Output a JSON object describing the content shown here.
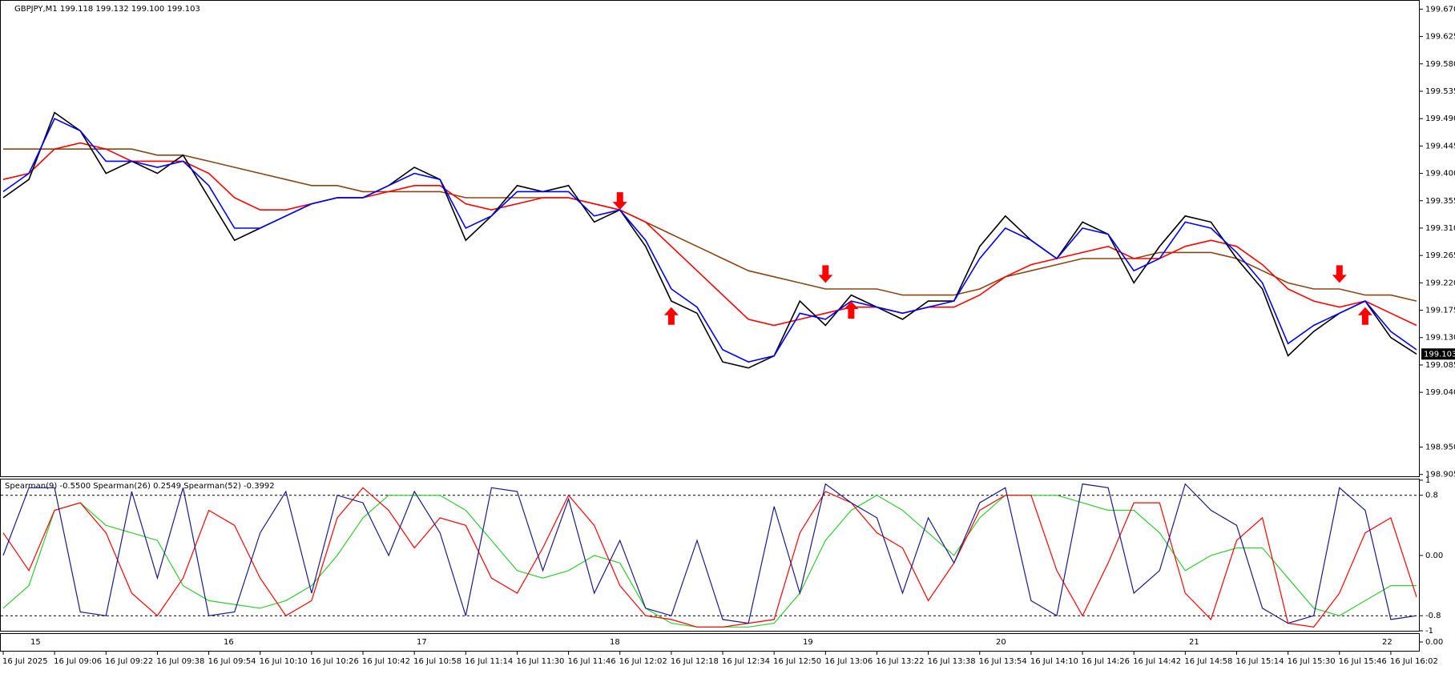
{
  "chart_data": {
    "type": "line",
    "title": "GBPJPY,M1  199.118 199.132 199.100 199.103",
    "categories": [
      "16 Jul 2025",
      null,
      "16 Jul 09:06",
      null,
      "16 Jul 09:22",
      null,
      "16 Jul 09:38",
      null,
      "16 Jul 09:54",
      null,
      "16 Jul 10:10",
      null,
      "16 Jul 10:26",
      null,
      "16 Jul 10:42",
      null,
      "16 Jul 10:58",
      null,
      "16 Jul 11:14",
      null,
      "16 Jul 11:30",
      null,
      "16 Jul 11:46",
      null,
      "16 Jul 12:02",
      null,
      "16 Jul 12:18",
      null,
      "16 Jul 12:34",
      null,
      "16 Jul 12:50",
      null,
      "16 Jul 13:06",
      null,
      "16 Jul 13:22",
      null,
      "16 Jul 13:38",
      null,
      "16 Jul 13:54",
      null,
      "16 Jul 14:10",
      null,
      "16 Jul 14:26",
      null,
      "16 Jul 14:42",
      null,
      "16 Jul 14:58",
      null,
      "16 Jul 15:14",
      null,
      "16 Jul 15:30",
      null,
      "16 Jul 15:46",
      null,
      "16 Jul 16:02",
      null
    ],
    "ylim": [
      198.902,
      199.685
    ],
    "yticks": [
      {
        "value": 199.67,
        "label": "199.670"
      },
      {
        "value": 199.625,
        "label": "199.625"
      },
      {
        "value": 199.58,
        "label": "199.580"
      },
      {
        "value": 199.535,
        "label": "199.535"
      },
      {
        "value": 199.49,
        "label": "199.490"
      },
      {
        "value": 199.445,
        "label": "199.445"
      },
      {
        "value": 199.4,
        "label": "199.400"
      },
      {
        "value": 199.355,
        "label": "199.355"
      },
      {
        "value": 199.31,
        "label": "199.310"
      },
      {
        "value": 199.265,
        "label": "199.265"
      },
      {
        "value": 199.22,
        "label": "199.220"
      },
      {
        "value": 199.175,
        "label": "199.175"
      },
      {
        "value": 199.13,
        "label": "199.130"
      },
      {
        "value": 199.085,
        "label": "199.085"
      },
      {
        "value": 199.04,
        "label": "199.040"
      },
      {
        "value": 198.95,
        "label": "198.950"
      },
      {
        "value": 198.905,
        "label": "198.905"
      }
    ],
    "grid": false,
    "last_price": "199.103",
    "series": [
      {
        "color": "#8b4513",
        "values": [
          199.44,
          199.44,
          199.44,
          199.44,
          199.44,
          199.44,
          199.43,
          199.43,
          199.42,
          199.41,
          199.4,
          199.39,
          199.38,
          199.38,
          199.37,
          199.37,
          199.37,
          199.37,
          199.36,
          199.36,
          199.36,
          199.36,
          199.36,
          199.35,
          199.34,
          199.32,
          199.3,
          199.28,
          199.26,
          199.24,
          199.23,
          199.22,
          199.21,
          199.21,
          199.21,
          199.2,
          199.2,
          199.2,
          199.21,
          199.23,
          199.24,
          199.25,
          199.26,
          199.26,
          199.26,
          199.27,
          199.27,
          199.27,
          199.26,
          199.24,
          199.22,
          199.21,
          199.21,
          199.2,
          199.2,
          199.19
        ]
      },
      {
        "color": "#ff0000",
        "values": [
          199.39,
          199.4,
          199.44,
          199.45,
          199.44,
          199.42,
          199.42,
          199.42,
          199.4,
          199.36,
          199.34,
          199.34,
          199.35,
          199.36,
          199.36,
          199.37,
          199.38,
          199.38,
          199.35,
          199.34,
          199.35,
          199.36,
          199.36,
          199.35,
          199.34,
          199.32,
          199.28,
          199.24,
          199.2,
          199.16,
          199.15,
          199.16,
          199.17,
          199.18,
          199.18,
          199.17,
          199.18,
          199.18,
          199.2,
          199.23,
          199.25,
          199.26,
          199.27,
          199.28,
          199.26,
          199.26,
          199.28,
          199.29,
          199.28,
          199.25,
          199.21,
          199.19,
          199.18,
          199.19,
          199.17,
          199.15
        ]
      },
      {
        "color": "#000000",
        "values": [
          199.36,
          199.39,
          199.5,
          199.47,
          199.4,
          199.42,
          199.4,
          199.43,
          199.36,
          199.29,
          199.31,
          199.33,
          199.35,
          199.36,
          199.36,
          199.38,
          199.41,
          199.39,
          199.29,
          199.33,
          199.38,
          199.37,
          199.38,
          199.32,
          199.34,
          199.28,
          199.19,
          199.17,
          199.09,
          199.08,
          199.1,
          199.19,
          199.15,
          199.2,
          199.18,
          199.16,
          199.19,
          199.19,
          199.28,
          199.33,
          199.29,
          199.26,
          199.32,
          199.3,
          199.22,
          199.28,
          199.33,
          199.32,
          199.26,
          199.21,
          199.1,
          199.14,
          199.17,
          199.19,
          199.13,
          199.103
        ]
      },
      {
        "color": "#0000ff",
        "values": [
          199.37,
          199.4,
          199.49,
          199.47,
          199.42,
          199.42,
          199.41,
          199.42,
          199.38,
          199.31,
          199.31,
          199.33,
          199.35,
          199.36,
          199.36,
          199.38,
          199.4,
          199.39,
          199.31,
          199.33,
          199.37,
          199.37,
          199.37,
          199.33,
          199.34,
          199.29,
          199.21,
          199.18,
          199.11,
          199.09,
          199.1,
          199.17,
          199.16,
          199.19,
          199.18,
          199.17,
          199.18,
          199.19,
          199.26,
          199.31,
          199.29,
          199.26,
          199.31,
          199.3,
          199.24,
          199.26,
          199.32,
          199.31,
          199.27,
          199.22,
          199.12,
          199.15,
          199.17,
          199.19,
          199.14,
          199.11
        ]
      }
    ],
    "signals": {
      "sell": {
        "color": "#ff0000",
        "values": [
          null,
          null,
          null,
          null,
          null,
          null,
          null,
          null,
          null,
          null,
          null,
          null,
          null,
          null,
          null,
          null,
          null,
          null,
          null,
          null,
          null,
          null,
          null,
          null,
          199.34,
          null,
          null,
          null,
          null,
          null,
          null,
          null,
          199.22,
          null,
          null,
          null,
          null,
          null,
          null,
          null,
          null,
          null,
          null,
          null,
          null,
          null,
          null,
          null,
          null,
          null,
          null,
          null,
          199.22,
          null,
          null,
          null
        ]
      },
      "buy": {
        "color": "#ff0000",
        "values": [
          null,
          null,
          null,
          null,
          null,
          null,
          null,
          null,
          null,
          null,
          null,
          null,
          null,
          null,
          null,
          null,
          null,
          null,
          null,
          null,
          null,
          null,
          null,
          null,
          null,
          null,
          199.18,
          null,
          null,
          null,
          null,
          null,
          null,
          199.19,
          null,
          null,
          null,
          null,
          null,
          null,
          null,
          null,
          null,
          null,
          null,
          null,
          null,
          null,
          null,
          null,
          null,
          null,
          null,
          199.18,
          null,
          null
        ]
      }
    },
    "indicator": {
      "type": "line",
      "title": "Spearman(9) -0.5500  Spearman(26) 0.2549  Spearman(52) -0.3992",
      "ylim": [
        -1.0,
        1.02
      ],
      "yticks": [
        1,
        0.8,
        {
          "value": 0,
          "label": "0.00"
        },
        -0.8,
        -1
      ],
      "dashed_levels": [
        0.8,
        -0.8
      ],
      "series": [
        {
          "color": "#32cd32",
          "values": [
            -0.7,
            -0.4,
            0.6,
            0.7,
            0.4,
            0.3,
            0.2,
            -0.4,
            -0.6,
            -0.65,
            -0.7,
            -0.6,
            -0.4,
            0.0,
            0.5,
            0.8,
            0.8,
            0.8,
            0.6,
            0.2,
            -0.2,
            -0.3,
            -0.2,
            0.0,
            -0.1,
            -0.7,
            -0.9,
            -0.95,
            -0.95,
            -0.95,
            -0.9,
            -0.5,
            0.2,
            0.6,
            0.8,
            0.6,
            0.3,
            0.0,
            0.5,
            0.8,
            0.8,
            0.8,
            0.7,
            0.6,
            0.6,
            0.3,
            -0.2,
            0.0,
            0.1,
            0.1,
            -0.3,
            -0.7,
            -0.8,
            -0.6,
            -0.4,
            -0.4
          ]
        },
        {
          "color": "#ff0000",
          "values": [
            0.3,
            -0.2,
            0.6,
            0.7,
            0.3,
            -0.5,
            -0.8,
            -0.3,
            0.6,
            0.4,
            -0.3,
            -0.8,
            -0.6,
            0.5,
            0.9,
            0.6,
            0.1,
            0.5,
            0.4,
            -0.3,
            -0.5,
            0.1,
            0.8,
            0.4,
            -0.4,
            -0.8,
            -0.85,
            -0.95,
            -0.95,
            -0.9,
            -0.85,
            0.3,
            0.85,
            0.7,
            0.3,
            0.1,
            -0.6,
            -0.1,
            0.6,
            0.8,
            0.8,
            -0.2,
            -0.8,
            -0.1,
            0.7,
            0.7,
            -0.5,
            -0.85,
            0.2,
            0.5,
            -0.9,
            -0.95,
            -0.5,
            0.3,
            0.5,
            -0.55
          ]
        },
        {
          "color": "#1a1a8c",
          "values": [
            0.0,
            0.9,
            0.9,
            -0.75,
            -0.8,
            0.85,
            -0.3,
            0.9,
            -0.8,
            -0.75,
            0.3,
            0.85,
            -0.5,
            0.8,
            0.7,
            0.0,
            0.85,
            0.3,
            -0.8,
            0.9,
            0.85,
            -0.2,
            0.75,
            -0.5,
            0.2,
            -0.7,
            -0.8,
            0.2,
            -0.85,
            -0.9,
            0.65,
            -0.5,
            0.95,
            0.7,
            0.5,
            -0.5,
            0.5,
            -0.1,
            0.7,
            0.9,
            -0.6,
            -0.8,
            0.95,
            0.9,
            -0.5,
            -0.2,
            0.95,
            0.6,
            0.4,
            -0.7,
            -0.9,
            -0.8,
            0.9,
            0.6,
            -0.85,
            -0.8
          ]
        }
      ]
    },
    "sub_panel": {
      "ylim": [
        -1,
        1
      ],
      "yticks": [
        {
          "value": 0,
          "label": "0.00"
        }
      ],
      "separator_labels": [
        "15",
        "16",
        "17",
        "18",
        "19",
        "20",
        "21",
        "22"
      ]
    }
  }
}
